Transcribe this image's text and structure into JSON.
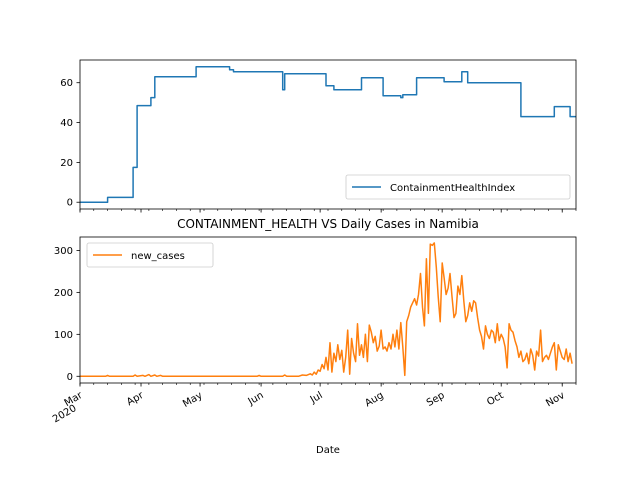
{
  "chart_data": [
    {
      "type": "line",
      "title": "",
      "xlabel": "",
      "ylabel": "",
      "legend_position": "lower right",
      "grid": false,
      "x_range": [
        "2020-03-01",
        "2020-11-01"
      ],
      "ylim": [
        -3.4,
        71.4
      ],
      "yticks": [
        0,
        20,
        40,
        60
      ],
      "series": [
        {
          "name": "ContainmentHealthIndex",
          "color": "#1f77b4",
          "step": true,
          "points": [
            [
              "2020-03-01",
              0
            ],
            [
              "2020-03-15",
              2.4
            ],
            [
              "2020-03-28",
              17.5
            ],
            [
              "2020-03-30",
              48.5
            ],
            [
              "2020-04-06",
              52.5
            ],
            [
              "2020-04-08",
              63.0
            ],
            [
              "2020-04-29",
              68.0
            ],
            [
              "2020-05-16",
              66.5
            ],
            [
              "2020-05-18",
              65.5
            ],
            [
              "2020-06-12",
              56.5
            ],
            [
              "2020-06-13",
              64.5
            ],
            [
              "2020-07-04",
              58.5
            ],
            [
              "2020-07-08",
              56.5
            ],
            [
              "2020-07-22",
              62.5
            ],
            [
              "2020-08-02",
              53.5
            ],
            [
              "2020-08-11",
              52.5
            ],
            [
              "2020-08-12",
              54.0
            ],
            [
              "2020-08-19",
              62.5
            ],
            [
              "2020-09-02",
              60.5
            ],
            [
              "2020-09-11",
              65.5
            ],
            [
              "2020-09-14",
              60.0
            ],
            [
              "2020-10-11",
              43.0
            ],
            [
              "2020-10-28",
              48.0
            ],
            [
              "2020-11-05",
              43.0
            ],
            [
              "2020-11-08",
              43.0
            ]
          ]
        }
      ],
      "xticks": [
        {
          "date": "2020-03-01",
          "label": "Mar",
          "sublabel": "2020"
        },
        {
          "date": "2020-04-01",
          "label": "Apr"
        },
        {
          "date": "2020-05-01",
          "label": "May"
        },
        {
          "date": "2020-06-01",
          "label": "Jun"
        },
        {
          "date": "2020-07-01",
          "label": "Jul"
        },
        {
          "date": "2020-08-01",
          "label": "Aug"
        },
        {
          "date": "2020-09-01",
          "label": "Sep"
        },
        {
          "date": "2020-10-01",
          "label": "Oct"
        },
        {
          "date": "2020-11-01",
          "label": "Nov"
        }
      ]
    },
    {
      "type": "line",
      "title": "CONTAINMENT_HEALTH VS Daily Cases in Namibia",
      "xlabel": "Date",
      "ylabel": "",
      "legend_position": "upper left",
      "grid": false,
      "x_range": [
        "2020-03-01",
        "2020-11-01"
      ],
      "ylim": [
        -16,
        332
      ],
      "yticks": [
        0,
        100,
        200,
        300
      ],
      "series": [
        {
          "name": "new_cases",
          "color": "#ff7f0e",
          "step": false,
          "points": [
            [
              "2020-03-01",
              0
            ],
            [
              "2020-03-14",
              0
            ],
            [
              "2020-03-15",
              2
            ],
            [
              "2020-03-16",
              0
            ],
            [
              "2020-03-28",
              0
            ],
            [
              "2020-03-29",
              3
            ],
            [
              "2020-03-30",
              0
            ],
            [
              "2020-04-02",
              2
            ],
            [
              "2020-04-03",
              0
            ],
            [
              "2020-04-05",
              4
            ],
            [
              "2020-04-06",
              0
            ],
            [
              "2020-04-08",
              3
            ],
            [
              "2020-04-09",
              0
            ],
            [
              "2020-04-11",
              2
            ],
            [
              "2020-04-12",
              0
            ],
            [
              "2020-05-30",
              0
            ],
            [
              "2020-05-31",
              2
            ],
            [
              "2020-06-01",
              0
            ],
            [
              "2020-06-12",
              0
            ],
            [
              "2020-06-13",
              3
            ],
            [
              "2020-06-14",
              0
            ],
            [
              "2020-06-20",
              0
            ],
            [
              "2020-06-22",
              3
            ],
            [
              "2020-06-24",
              2
            ],
            [
              "2020-06-26",
              6
            ],
            [
              "2020-06-27",
              3
            ],
            [
              "2020-06-28",
              10
            ],
            [
              "2020-06-29",
              5
            ],
            [
              "2020-06-30",
              15
            ],
            [
              "2020-07-01",
              12
            ],
            [
              "2020-07-02",
              28
            ],
            [
              "2020-07-03",
              18
            ],
            [
              "2020-07-04",
              45
            ],
            [
              "2020-07-05",
              15
            ],
            [
              "2020-07-06",
              80
            ],
            [
              "2020-07-07",
              10
            ],
            [
              "2020-07-08",
              55
            ],
            [
              "2020-07-09",
              35
            ],
            [
              "2020-07-10",
              75
            ],
            [
              "2020-07-11",
              40
            ],
            [
              "2020-07-12",
              62
            ],
            [
              "2020-07-13",
              10
            ],
            [
              "2020-07-14",
              45
            ],
            [
              "2020-07-15",
              110
            ],
            [
              "2020-07-16",
              5
            ],
            [
              "2020-07-17",
              90
            ],
            [
              "2020-07-18",
              55
            ],
            [
              "2020-07-19",
              35
            ],
            [
              "2020-07-20",
              125
            ],
            [
              "2020-07-21",
              50
            ],
            [
              "2020-07-22",
              75
            ],
            [
              "2020-07-23",
              45
            ],
            [
              "2020-07-24",
              100
            ],
            [
              "2020-07-25",
              35
            ],
            [
              "2020-07-26",
              122
            ],
            [
              "2020-07-27",
              105
            ],
            [
              "2020-07-28",
              80
            ],
            [
              "2020-07-29",
              95
            ],
            [
              "2020-07-30",
              60
            ],
            [
              "2020-07-31",
              72
            ],
            [
              "2020-08-01",
              110
            ],
            [
              "2020-08-02",
              65
            ],
            [
              "2020-08-03",
              70
            ],
            [
              "2020-08-04",
              60
            ],
            [
              "2020-08-05",
              80
            ],
            [
              "2020-08-06",
              65
            ],
            [
              "2020-08-07",
              100
            ],
            [
              "2020-08-08",
              70
            ],
            [
              "2020-08-09",
              110
            ],
            [
              "2020-08-10",
              65
            ],
            [
              "2020-08-11",
              128
            ],
            [
              "2020-08-12",
              70
            ],
            [
              "2020-08-13",
              2
            ],
            [
              "2020-08-14",
              130
            ],
            [
              "2020-08-15",
              145
            ],
            [
              "2020-08-16",
              165
            ],
            [
              "2020-08-17",
              175
            ],
            [
              "2020-08-18",
              185
            ],
            [
              "2020-08-19",
              170
            ],
            [
              "2020-08-20",
              195
            ],
            [
              "2020-08-21",
              245
            ],
            [
              "2020-08-22",
              165
            ],
            [
              "2020-08-23",
              120
            ],
            [
              "2020-08-24",
              280
            ],
            [
              "2020-08-25",
              150
            ],
            [
              "2020-08-26",
              315
            ],
            [
              "2020-08-27",
              312
            ],
            [
              "2020-08-28",
              318
            ],
            [
              "2020-08-29",
              260
            ],
            [
              "2020-08-30",
              190
            ],
            [
              "2020-08-31",
              130
            ],
            [
              "2020-09-01",
              270
            ],
            [
              "2020-09-02",
              235
            ],
            [
              "2020-09-03",
              195
            ],
            [
              "2020-09-04",
              210
            ],
            [
              "2020-09-05",
              245
            ],
            [
              "2020-09-06",
              190
            ],
            [
              "2020-09-07",
              140
            ],
            [
              "2020-09-08",
              150
            ],
            [
              "2020-09-09",
              215
            ],
            [
              "2020-09-10",
              195
            ],
            [
              "2020-09-11",
              240
            ],
            [
              "2020-09-12",
              180
            ],
            [
              "2020-09-13",
              130
            ],
            [
              "2020-09-14",
              145
            ],
            [
              "2020-09-15",
              175
            ],
            [
              "2020-09-16",
              155
            ],
            [
              "2020-09-17",
              180
            ],
            [
              "2020-09-18",
              175
            ],
            [
              "2020-09-19",
              140
            ],
            [
              "2020-09-20",
              110
            ],
            [
              "2020-09-21",
              95
            ],
            [
              "2020-09-22",
              65
            ],
            [
              "2020-09-23",
              120
            ],
            [
              "2020-09-24",
              100
            ],
            [
              "2020-09-25",
              90
            ],
            [
              "2020-09-26",
              110
            ],
            [
              "2020-09-27",
              105
            ],
            [
              "2020-09-28",
              80
            ],
            [
              "2020-09-29",
              125
            ],
            [
              "2020-09-30",
              85
            ],
            [
              "2020-10-01",
              100
            ],
            [
              "2020-10-02",
              90
            ],
            [
              "2020-10-03",
              70
            ],
            [
              "2020-10-04",
              20
            ],
            [
              "2020-10-05",
              125
            ],
            [
              "2020-10-06",
              110
            ],
            [
              "2020-10-07",
              105
            ],
            [
              "2020-10-08",
              85
            ],
            [
              "2020-10-09",
              70
            ],
            [
              "2020-10-10",
              45
            ],
            [
              "2020-10-11",
              60
            ],
            [
              "2020-10-12",
              35
            ],
            [
              "2020-10-13",
              40
            ],
            [
              "2020-10-14",
              55
            ],
            [
              "2020-10-15",
              30
            ],
            [
              "2020-10-16",
              65
            ],
            [
              "2020-10-17",
              50
            ],
            [
              "2020-10-18",
              15
            ],
            [
              "2020-10-19",
              60
            ],
            [
              "2020-10-20",
              48
            ],
            [
              "2020-10-21",
              110
            ],
            [
              "2020-10-22",
              35
            ],
            [
              "2020-10-23",
              45
            ],
            [
              "2020-10-24",
              50
            ],
            [
              "2020-10-25",
              40
            ],
            [
              "2020-10-26",
              55
            ],
            [
              "2020-10-27",
              70
            ],
            [
              "2020-10-28",
              80
            ],
            [
              "2020-10-29",
              15
            ],
            [
              "2020-10-30",
              75
            ],
            [
              "2020-10-31",
              60
            ],
            [
              "2020-11-01",
              45
            ],
            [
              "2020-11-02",
              40
            ],
            [
              "2020-11-03",
              65
            ],
            [
              "2020-11-04",
              35
            ],
            [
              "2020-11-05",
              55
            ],
            [
              "2020-11-06",
              30
            ]
          ]
        }
      ],
      "xticks": [
        {
          "date": "2020-03-01",
          "label": "Mar",
          "sublabel": "2020"
        },
        {
          "date": "2020-04-01",
          "label": "Apr"
        },
        {
          "date": "2020-05-01",
          "label": "May"
        },
        {
          "date": "2020-06-01",
          "label": "Jun"
        },
        {
          "date": "2020-07-01",
          "label": "Jul"
        },
        {
          "date": "2020-08-01",
          "label": "Aug"
        },
        {
          "date": "2020-09-01",
          "label": "Sep"
        },
        {
          "date": "2020-10-01",
          "label": "Oct"
        },
        {
          "date": "2020-11-01",
          "label": "Nov"
        }
      ]
    }
  ]
}
